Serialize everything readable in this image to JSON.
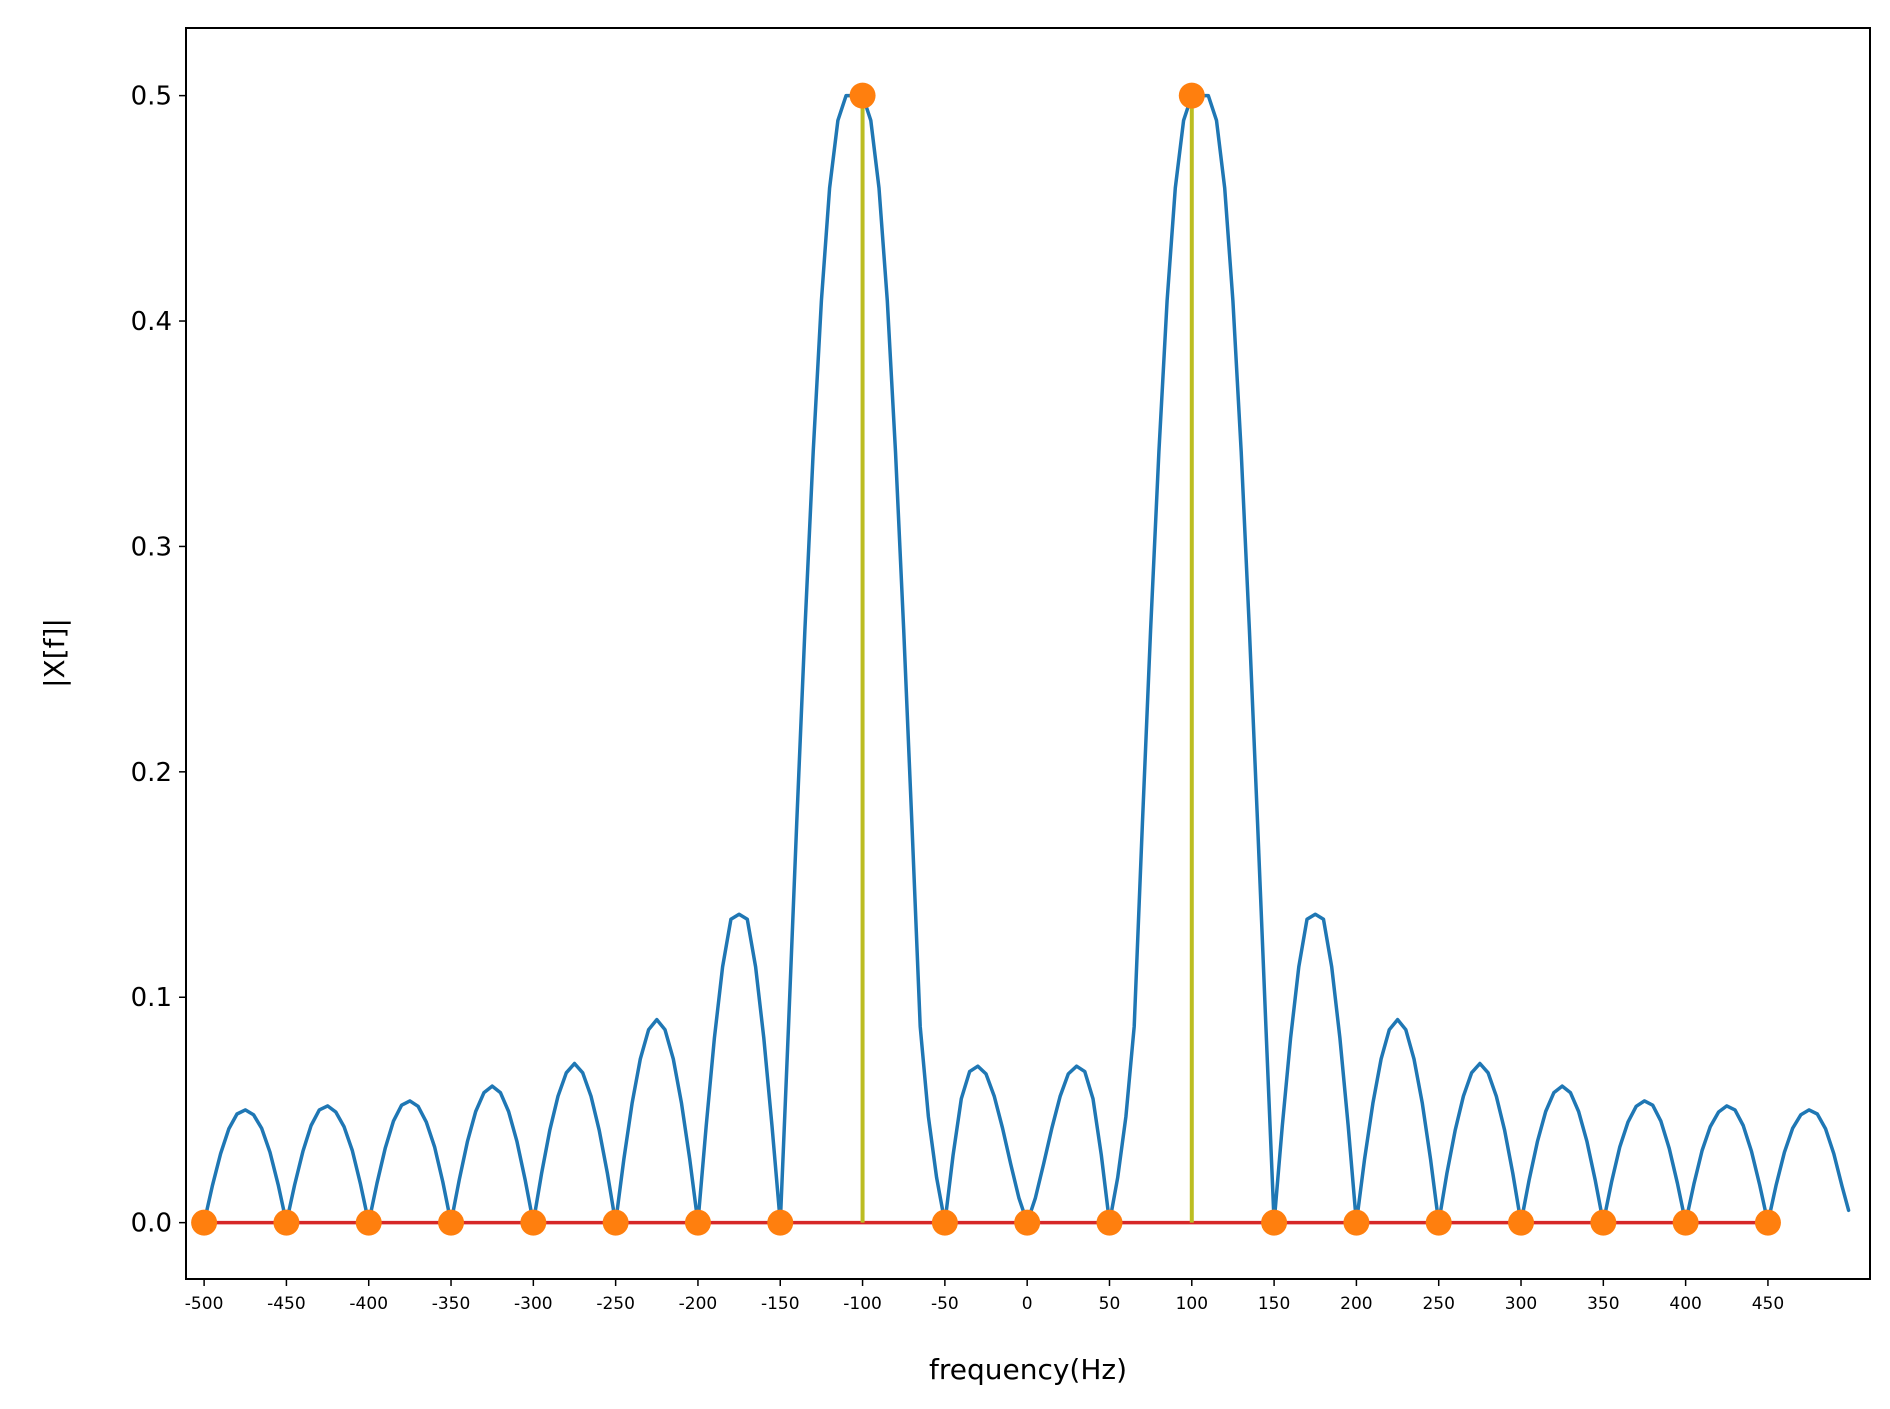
{
  "chart_data": {
    "type": "line",
    "title": "",
    "xlabel": "frequency(Hz)",
    "ylabel": "|X[f]|",
    "xlim": [
      -511,
      512
    ],
    "ylim": [
      -0.025,
      0.53
    ],
    "grid": false,
    "xticks": [
      -500,
      -450,
      -400,
      -350,
      -300,
      -250,
      -200,
      -150,
      -100,
      -50,
      0,
      50,
      100,
      150,
      200,
      250,
      300,
      350,
      400,
      450
    ],
    "xtick_labels": [
      "-500",
      "-450",
      "-400",
      "-350",
      "-300",
      "-250",
      "-200",
      "-150",
      "-100",
      "-50",
      "0",
      "50",
      "100",
      "150",
      "200",
      "250",
      "300",
      "350",
      "400",
      "450"
    ],
    "yticks": [
      0.0,
      0.1,
      0.2,
      0.3,
      0.4,
      0.5
    ],
    "ytick_labels": [
      "0.0",
      "0.1",
      "0.2",
      "0.3",
      "0.4",
      "0.5"
    ],
    "series": [
      {
        "kind": "continuous_spectrum",
        "color": "#1f77b4",
        "x": [
          -500,
          -495,
          -490,
          -485,
          -480,
          -475,
          -470,
          -465,
          -460,
          -455,
          -450,
          -445,
          -440,
          -435,
          -430,
          -425,
          -420,
          -415,
          -410,
          -405,
          -400,
          -395,
          -390,
          -385,
          -380,
          -375,
          -370,
          -365,
          -360,
          -355,
          -350,
          -345,
          -340,
          -335,
          -330,
          -325,
          -320,
          -315,
          -310,
          -305,
          -300,
          -295,
          -290,
          -285,
          -280,
          -275,
          -270,
          -265,
          -260,
          -255,
          -250,
          -245,
          -240,
          -235,
          -230,
          -225,
          -220,
          -215,
          -210,
          -205,
          -200,
          -195,
          -190,
          -185,
          -180,
          -175,
          -170,
          -165,
          -160,
          -155,
          -150,
          -145,
          -140,
          -135,
          -130,
          -125,
          -120,
          -115,
          -110,
          -105,
          -100,
          -95,
          -90,
          -85,
          -80,
          -75,
          -70,
          -65,
          -60,
          -55,
          -50,
          -45,
          -40,
          -35,
          -30,
          -25,
          -20,
          -15,
          -10,
          -5,
          0,
          5,
          10,
          15,
          20,
          25,
          30,
          35,
          40,
          45,
          50,
          55,
          60,
          65,
          70,
          75,
          80,
          85,
          90,
          95,
          100,
          105,
          110,
          115,
          120,
          125,
          130,
          135,
          140,
          145,
          150,
          155,
          160,
          165,
          170,
          175,
          180,
          185,
          190,
          195,
          200,
          205,
          210,
          215,
          220,
          225,
          230,
          235,
          240,
          245,
          250,
          255,
          260,
          265,
          270,
          275,
          280,
          285,
          290,
          295,
          300,
          305,
          310,
          315,
          320,
          325,
          330,
          335,
          340,
          345,
          350,
          355,
          360,
          365,
          370,
          375,
          380,
          385,
          390,
          395,
          400,
          405,
          410,
          415,
          420,
          425,
          430,
          435,
          440,
          445,
          450,
          455,
          460,
          465,
          470,
          475,
          480,
          485,
          490,
          495,
          499
        ],
        "y": [
          0.0,
          0.0162,
          0.0306,
          0.0416,
          0.0482,
          0.05,
          0.0479,
          0.0418,
          0.0312,
          0.0168,
          0.0,
          0.0167,
          0.0316,
          0.0431,
          0.05,
          0.0518,
          0.0491,
          0.0426,
          0.032,
          0.0171,
          0.0,
          0.0175,
          0.033,
          0.045,
          0.0521,
          0.054,
          0.0516,
          0.0446,
          0.0336,
          0.0181,
          0.0,
          0.0191,
          0.0361,
          0.0493,
          0.0577,
          0.0606,
          0.0577,
          0.0493,
          0.0361,
          0.0191,
          0.0,
          0.0219,
          0.041,
          0.0561,
          0.0665,
          0.0706,
          0.0665,
          0.0561,
          0.041,
          0.0219,
          0.0,
          0.0283,
          0.053,
          0.0726,
          0.0856,
          0.0901,
          0.0856,
          0.0726,
          0.053,
          0.0283,
          0.0,
          0.0429,
          0.0819,
          0.1135,
          0.1346,
          0.1368,
          0.1346,
          0.1135,
          0.0819,
          0.0429,
          0.0,
          0.087,
          0.177,
          0.263,
          0.342,
          0.409,
          0.459,
          0.489,
          0.5,
          0.5,
          0.5,
          0.489,
          0.459,
          0.409,
          0.342,
          0.263,
          0.177,
          0.087,
          0.047,
          0.02,
          0.0,
          0.03,
          0.055,
          0.067,
          0.0694,
          0.066,
          0.056,
          0.042,
          0.026,
          0.011,
          0.0,
          0.011,
          0.026,
          0.042,
          0.056,
          0.066,
          0.0694,
          0.067,
          0.055,
          0.03,
          0.0,
          0.02,
          0.047,
          0.087,
          0.177,
          0.263,
          0.342,
          0.409,
          0.459,
          0.489,
          0.5,
          0.5,
          0.5,
          0.489,
          0.459,
          0.409,
          0.342,
          0.263,
          0.177,
          0.087,
          0.0,
          0.0429,
          0.0819,
          0.1135,
          0.1346,
          0.1368,
          0.1346,
          0.1135,
          0.0819,
          0.0429,
          0.0,
          0.0283,
          0.053,
          0.0726,
          0.0856,
          0.0901,
          0.0856,
          0.0726,
          0.053,
          0.0283,
          0.0,
          0.0219,
          0.041,
          0.0561,
          0.0665,
          0.0706,
          0.0665,
          0.0561,
          0.041,
          0.0219,
          0.0,
          0.0191,
          0.0361,
          0.0493,
          0.0577,
          0.0606,
          0.0577,
          0.0493,
          0.0361,
          0.0191,
          0.0,
          0.0181,
          0.0336,
          0.0446,
          0.0516,
          0.054,
          0.0521,
          0.045,
          0.033,
          0.0175,
          0.0,
          0.0171,
          0.032,
          0.0426,
          0.0491,
          0.0518,
          0.05,
          0.0431,
          0.0316,
          0.0167,
          0.0,
          0.0168,
          0.0312,
          0.0418,
          0.0479,
          0.05,
          0.0482,
          0.0416,
          0.0306,
          0.0162,
          0.0055
        ]
      },
      {
        "kind": "stem_markers",
        "marker_color": "#ff7f0e",
        "stem_color": "#bcbd22",
        "baseline_color": "#d62728",
        "x": [
          -500,
          -450,
          -400,
          -350,
          -300,
          -250,
          -200,
          -150,
          -100,
          -50,
          0,
          50,
          100,
          150,
          200,
          250,
          300,
          350,
          400,
          450
        ],
        "y": [
          0,
          0,
          0,
          0,
          0,
          0,
          0,
          0,
          0.5,
          0,
          0,
          0,
          0.5,
          0,
          0,
          0,
          0,
          0,
          0,
          0
        ]
      }
    ]
  }
}
